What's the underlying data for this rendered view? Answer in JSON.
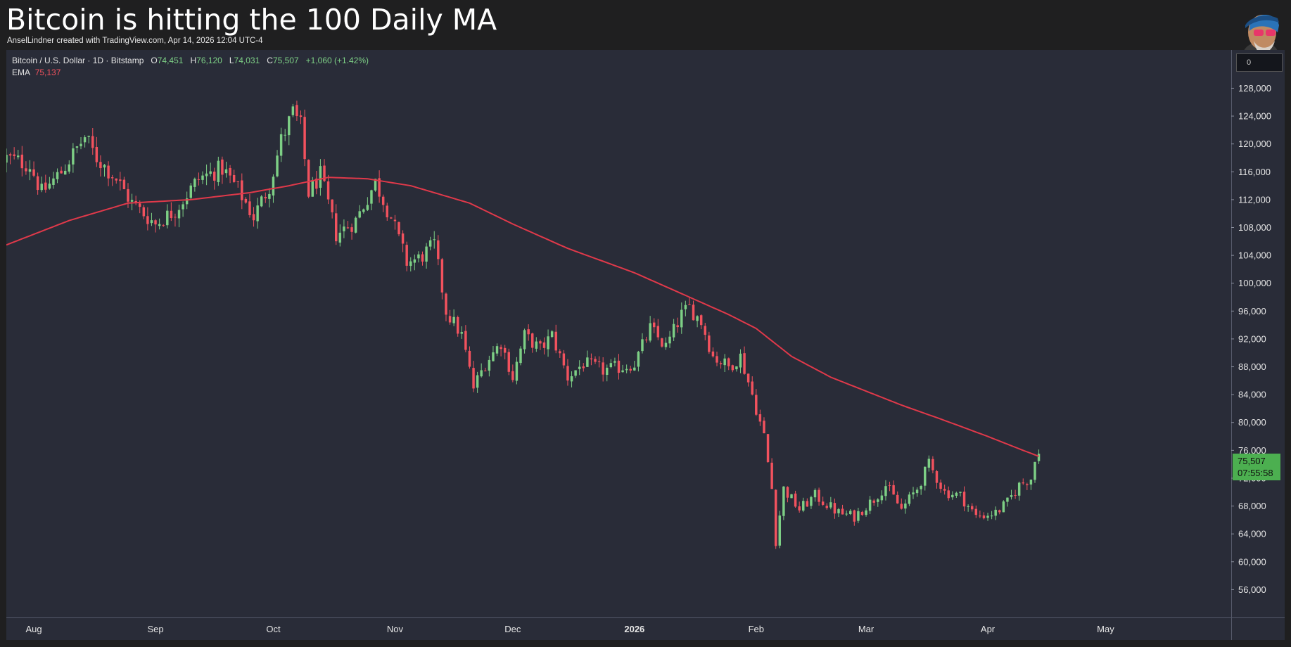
{
  "header": {
    "title": "Bitcoin is hitting the 100 Daily MA",
    "credit": "AnselLindner created with TradingView.com, Apr 14, 2026 12:04 UTC-4"
  },
  "legend": {
    "symbol": "Bitcoin / U.S. Dollar · 1D · Bitstamp",
    "o_label": "O",
    "o_value": "74,451",
    "h_label": "H",
    "h_value": "76,120",
    "l_label": "L",
    "l_value": "74,031",
    "c_label": "C",
    "c_value": "75,507",
    "change": "+1,060 (+1.42%)",
    "ema_label": "EMA",
    "ema_value": "75,137"
  },
  "price_tag": {
    "price": "75,507",
    "countdown": "07:55:58"
  },
  "top_button_label": "0",
  "colors": {
    "up": "#7dcf85",
    "down": "#f2525e",
    "ema": "#e0394a",
    "background": "#292c38",
    "grid": "#2f3341",
    "axis_text": "#e6e6e6"
  },
  "chart_data": {
    "type": "candlestick",
    "title": "Bitcoin is hitting the 100 Daily MA",
    "symbol": "BTC/USD",
    "timeframe": "1D",
    "exchange": "Bitstamp",
    "y_ticks": [
      56000,
      60000,
      64000,
      68000,
      72000,
      76000,
      80000,
      84000,
      88000,
      92000,
      96000,
      100000,
      104000,
      108000,
      112000,
      116000,
      120000,
      124000,
      128000
    ],
    "y_tick_labels": [
      "56,000",
      "60,000",
      "64,000",
      "68,000",
      "72,000",
      "76,000",
      "80,000",
      "84,000",
      "88,000",
      "92,000",
      "96,000",
      "100,000",
      "104,000",
      "108,000",
      "112,000",
      "116,000",
      "120,000",
      "124,000",
      "128,000"
    ],
    "ylim": [
      52000,
      133500
    ],
    "x_ticks": [
      {
        "label": "Aug",
        "date": "2025-08-01",
        "bold": false
      },
      {
        "label": "Sep",
        "date": "2025-09-01",
        "bold": false
      },
      {
        "label": "Oct",
        "date": "2025-10-01",
        "bold": false
      },
      {
        "label": "Nov",
        "date": "2025-11-01",
        "bold": false
      },
      {
        "label": "Dec",
        "date": "2025-12-01",
        "bold": false
      },
      {
        "label": "2026",
        "date": "2026-01-01",
        "bold": true
      },
      {
        "label": "Feb",
        "date": "2026-02-01",
        "bold": false
      },
      {
        "label": "Mar",
        "date": "2026-03-01",
        "bold": false
      },
      {
        "label": "Apr",
        "date": "2026-04-01",
        "bold": false
      },
      {
        "label": "May",
        "date": "2026-05-01",
        "bold": false
      }
    ],
    "xlim": [
      "2025-07-25",
      "2026-06-02"
    ],
    "close_keypoints": [
      [
        "2025-07-25",
        118000
      ],
      [
        "2025-07-31",
        117000
      ],
      [
        "2025-08-03",
        113000
      ],
      [
        "2025-08-08",
        116000
      ],
      [
        "2025-08-14",
        121000
      ],
      [
        "2025-08-17",
        118000
      ],
      [
        "2025-08-22",
        115000
      ],
      [
        "2025-08-26",
        111500
      ],
      [
        "2025-09-01",
        108500
      ],
      [
        "2025-09-06",
        110500
      ],
      [
        "2025-09-12",
        115000
      ],
      [
        "2025-09-18",
        116500
      ],
      [
        "2025-09-22",
        113500
      ],
      [
        "2025-09-26",
        109500
      ],
      [
        "2025-09-30",
        114000
      ],
      [
        "2025-10-03",
        120500
      ],
      [
        "2025-10-06",
        124500
      ],
      [
        "2025-10-08",
        122500
      ],
      [
        "2025-10-10",
        113000
      ],
      [
        "2025-10-13",
        115500
      ],
      [
        "2025-10-17",
        107000
      ],
      [
        "2025-10-22",
        109000
      ],
      [
        "2025-10-27",
        114500
      ],
      [
        "2025-10-31",
        109500
      ],
      [
        "2025-11-04",
        103000
      ],
      [
        "2025-11-07",
        103500
      ],
      [
        "2025-11-11",
        105500
      ],
      [
        "2025-11-14",
        96000
      ],
      [
        "2025-11-18",
        92500
      ],
      [
        "2025-11-21",
        85000
      ],
      [
        "2025-11-24",
        88500
      ],
      [
        "2025-11-28",
        91500
      ],
      [
        "2025-12-01",
        86500
      ],
      [
        "2025-12-04",
        92500
      ],
      [
        "2025-12-08",
        90500
      ],
      [
        "2025-12-11",
        92500
      ],
      [
        "2025-12-15",
        86500
      ],
      [
        "2025-12-19",
        88500
      ],
      [
        "2025-12-24",
        87500
      ],
      [
        "2025-12-29",
        88000
      ],
      [
        "2026-01-01",
        88500
      ],
      [
        "2026-01-05",
        93500
      ],
      [
        "2026-01-09",
        90800
      ],
      [
        "2026-01-13",
        95500
      ],
      [
        "2026-01-15",
        96500
      ],
      [
        "2026-01-18",
        94500
      ],
      [
        "2026-01-21",
        89500
      ],
      [
        "2026-01-25",
        88000
      ],
      [
        "2026-01-28",
        89500
      ],
      [
        "2026-01-31",
        84000
      ],
      [
        "2026-02-03",
        78000
      ],
      [
        "2026-02-05",
        70500
      ],
      [
        "2026-02-06",
        63000
      ],
      [
        "2026-02-08",
        70500
      ],
      [
        "2026-02-12",
        67500
      ],
      [
        "2026-02-16",
        69500
      ],
      [
        "2026-02-22",
        67000
      ],
      [
        "2026-02-26",
        66500
      ],
      [
        "2026-03-03",
        69000
      ],
      [
        "2026-03-06",
        71000
      ],
      [
        "2026-03-10",
        67500
      ],
      [
        "2026-03-14",
        70500
      ],
      [
        "2026-03-17",
        74000
      ],
      [
        "2026-03-21",
        70000
      ],
      [
        "2026-03-25",
        69500
      ],
      [
        "2026-03-29",
        66500
      ],
      [
        "2026-04-03",
        67000
      ],
      [
        "2026-04-06",
        68500
      ],
      [
        "2026-04-09",
        71000
      ],
      [
        "2026-04-12",
        72000
      ],
      [
        "2026-04-13",
        74450
      ],
      [
        "2026-04-14",
        75507
      ]
    ],
    "ema_keypoints": [
      [
        "2025-07-25",
        105500
      ],
      [
        "2025-08-10",
        109000
      ],
      [
        "2025-08-25",
        111500
      ],
      [
        "2025-09-10",
        112000
      ],
      [
        "2025-09-25",
        113000
      ],
      [
        "2025-10-05",
        114000
      ],
      [
        "2025-10-15",
        115200
      ],
      [
        "2025-10-25",
        115000
      ],
      [
        "2025-11-05",
        114000
      ],
      [
        "2025-11-20",
        111500
      ],
      [
        "2025-12-01",
        108500
      ],
      [
        "2025-12-15",
        105000
      ],
      [
        "2026-01-01",
        101500
      ],
      [
        "2026-01-15",
        98000
      ],
      [
        "2026-01-25",
        95500
      ],
      [
        "2026-02-01",
        93500
      ],
      [
        "2026-02-10",
        89500
      ],
      [
        "2026-02-20",
        86500
      ],
      [
        "2026-03-01",
        84500
      ],
      [
        "2026-03-10",
        82500
      ],
      [
        "2026-03-20",
        80500
      ],
      [
        "2026-04-01",
        78000
      ],
      [
        "2026-04-10",
        76000
      ],
      [
        "2026-04-14",
        75137
      ]
    ],
    "ema_last": 75137,
    "last_close": 75507,
    "grid": false,
    "legend_position": "top-left"
  }
}
